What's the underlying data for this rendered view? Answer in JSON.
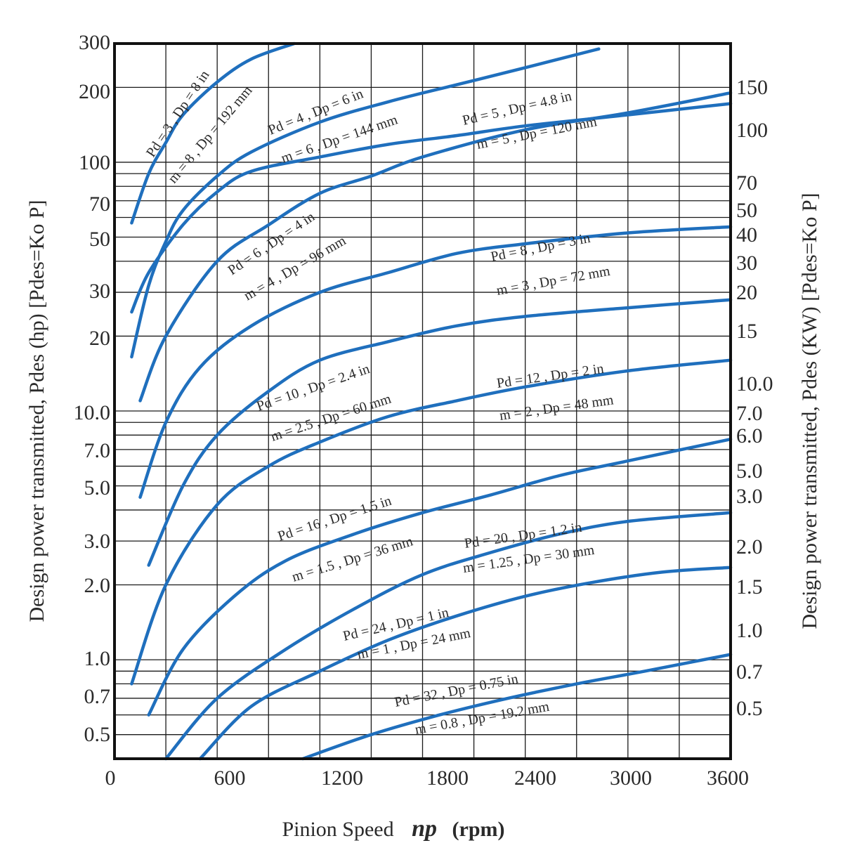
{
  "chart_data": {
    "type": "line",
    "scale": "log-y",
    "xlabel_prefix": "Pinion Speed",
    "xlabel_symbol": "np",
    "xlabel_unit": "(rpm)",
    "ylabel_left": "Design power transmitted,  Pdes (hp)  [Pdes=Ko P]",
    "ylabel_right": "Design power transmitted,  Pdes (KW)  [Pdes=Ko P]",
    "xlim": [
      0,
      3600
    ],
    "ylim_hp": [
      0.4,
      300
    ],
    "x_ticks": [
      "0",
      "600",
      "1200",
      "1800",
      "2400",
      "3000",
      "3600"
    ],
    "y_ticks_left": [
      "300",
      "200",
      "100",
      "70",
      "50",
      "30",
      "20",
      "10.0",
      "7.0",
      "5.0",
      "3.0",
      "2.0",
      "1.0",
      "0.7",
      "0.5"
    ],
    "y_ticks_right": [
      "150",
      "100",
      "70",
      "50",
      "40",
      "30",
      "20",
      "15",
      "10.0",
      "7.0",
      "6.0",
      "5.0",
      "3.0",
      "2.0",
      "1.5",
      "1.0",
      "0.7",
      "0.5"
    ],
    "grid": true,
    "line_color": "#1f6fbd",
    "series": [
      {
        "label1": "Pd = 3 , Dp = 8 in",
        "label2": "m = 8 , Dp = 192 mm",
        "x": [
          100,
          200,
          300,
          400,
          600,
          800,
          1050
        ],
        "y": [
          57,
          90,
          120,
          155,
          210,
          260,
          300
        ]
      },
      {
        "label1": "Pd = 4 , Dp = 6 in",
        "label2": "m = 6 , Dp = 144 mm",
        "x": [
          100,
          200,
          300,
          400,
          600,
          800,
          1200,
          1600,
          2000,
          2400,
          2800,
          2800
        ],
        "y": [
          16.5,
          32,
          48,
          64,
          88,
          110,
          145,
          175,
          205,
          240,
          282,
          282
        ]
      },
      {
        "label1": "Pd = 5 , Dp = 4.8 in",
        "label2": "m = 5 , Dp = 120 mm",
        "x": [
          150,
          300,
          600,
          900,
          1200,
          1500,
          1800,
          2400,
          3000,
          3600
        ],
        "y": [
          11,
          20,
          40,
          56,
          75,
          88,
          105,
          135,
          158,
          190
        ]
      },
      {
        "label1": "Pd = 6 , Dp = 4 in",
        "label2": "m = 4 , Dp = 96 mm",
        "x": [
          100,
          200,
          400,
          600,
          800,
          1200,
          1600,
          2000,
          2400,
          3000,
          3600
        ],
        "y": [
          25,
          36,
          56,
          76,
          92,
          105,
          118,
          128,
          140,
          155,
          172
        ]
      },
      {
        "label1": "Pd = 8 , Dp = 3 in",
        "label2": "m = 3 , Dp = 72 mm",
        "x": [
          150,
          300,
          500,
          800,
          1200,
          1600,
          2000,
          2400,
          3000,
          3600
        ],
        "y": [
          4.5,
          9,
          15,
          22,
          30,
          36,
          43,
          47,
          52,
          55
        ]
      },
      {
        "label1": "Pd = 10 , Dp = 2.4 in",
        "label2": "m = 2.5 , Dp = 60 mm",
        "x": [
          200,
          400,
          600,
          900,
          1200,
          1600,
          2000,
          2400,
          3000,
          3600
        ],
        "y": [
          2.4,
          5,
          8,
          12,
          16,
          19,
          22,
          24,
          26,
          28
        ]
      },
      {
        "label1": "Pd = 12 , Dp = 2 in",
        "label2": "m = 2 , Dp = 48 mm",
        "x": [
          100,
          300,
          600,
          900,
          1200,
          1600,
          2000,
          2400,
          3000,
          3600
        ],
        "y": [
          0.8,
          2,
          4.2,
          6,
          7.5,
          9.5,
          11,
          12.5,
          14.5,
          16
        ]
      },
      {
        "label1": "Pd = 16 , Dp = 1.5 in",
        "label2": "m = 1.5 , Dp = 36 mm",
        "x": [
          200,
          400,
          700,
          1000,
          1400,
          1800,
          2200,
          2600,
          3000,
          3600
        ],
        "y": [
          0.6,
          1.1,
          1.8,
          2.5,
          3.2,
          3.9,
          4.6,
          5.5,
          6.3,
          7.7
        ]
      },
      {
        "label1": "Pd = 20 , Dp = 1.2 in",
        "label2": "m = 1.25 , Dp = 30 mm",
        "x": [
          300,
          600,
          1000,
          1400,
          1800,
          2200,
          2600,
          3000,
          3600
        ],
        "y": [
          0.4,
          0.7,
          1.1,
          1.6,
          2.2,
          2.7,
          3.2,
          3.6,
          3.9
        ]
      },
      {
        "label1": "Pd = 24 , Dp = 1 in",
        "label2": "m = 1 , Dp = 24 mm",
        "x": [
          500,
          800,
          1200,
          1600,
          2000,
          2400,
          2800,
          3200,
          3600
        ],
        "y": [
          0.4,
          0.65,
          0.9,
          1.2,
          1.5,
          1.8,
          2.05,
          2.25,
          2.35
        ]
      },
      {
        "label1": "Pd = 32 , Dp = 0.75 in",
        "label2": "m = 0.8 , Dp = 19.2 mm",
        "x": [
          1100,
          1500,
          1900,
          2300,
          2700,
          3100,
          3600
        ],
        "y": [
          0.4,
          0.5,
          0.6,
          0.7,
          0.8,
          0.9,
          1.05
        ]
      }
    ]
  }
}
